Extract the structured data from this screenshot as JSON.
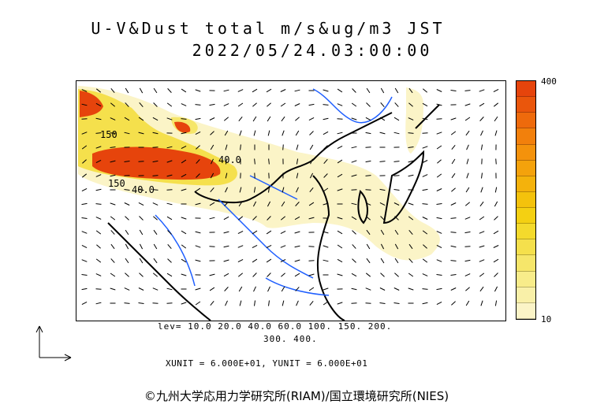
{
  "header": {
    "title_line1": "U-V&Dust total m/s&ug/m3 JST",
    "title_line2": "2022/05/24.03:00:00"
  },
  "colorbar": {
    "max_label": "400",
    "min_label": "10",
    "colors": [
      "#fbf4c7",
      "#f9f0a8",
      "#f8ec8a",
      "#f6e66a",
      "#f5e04c",
      "#f4da2c",
      "#f4d012",
      "#f4c20c",
      "#f4b20c",
      "#f4a20c",
      "#f4920c",
      "#f2800c",
      "#ee6a0c",
      "#ea560c",
      "#e6440c"
    ]
  },
  "levels": {
    "line1": "lev= 10.0 20.0 40.0 60.0 100. 150. 200.",
    "line2": "300. 400."
  },
  "units": {
    "text": "XUNIT = 6.000E+01, YUNIT = 6.000E+01"
  },
  "map": {
    "contour_labels": [
      "150",
      "150",
      "40.0",
      "40.0"
    ],
    "colors": {
      "dust_low": "#fbf4c7",
      "dust_mid": "#f5e04c",
      "dust_high": "#e6440c",
      "river": "#1f5fff",
      "coast": "#000000"
    }
  },
  "footer": {
    "copyright": "©九州大学応用力学研究所(RIAM)/国立環境研究所(NIES)"
  }
}
